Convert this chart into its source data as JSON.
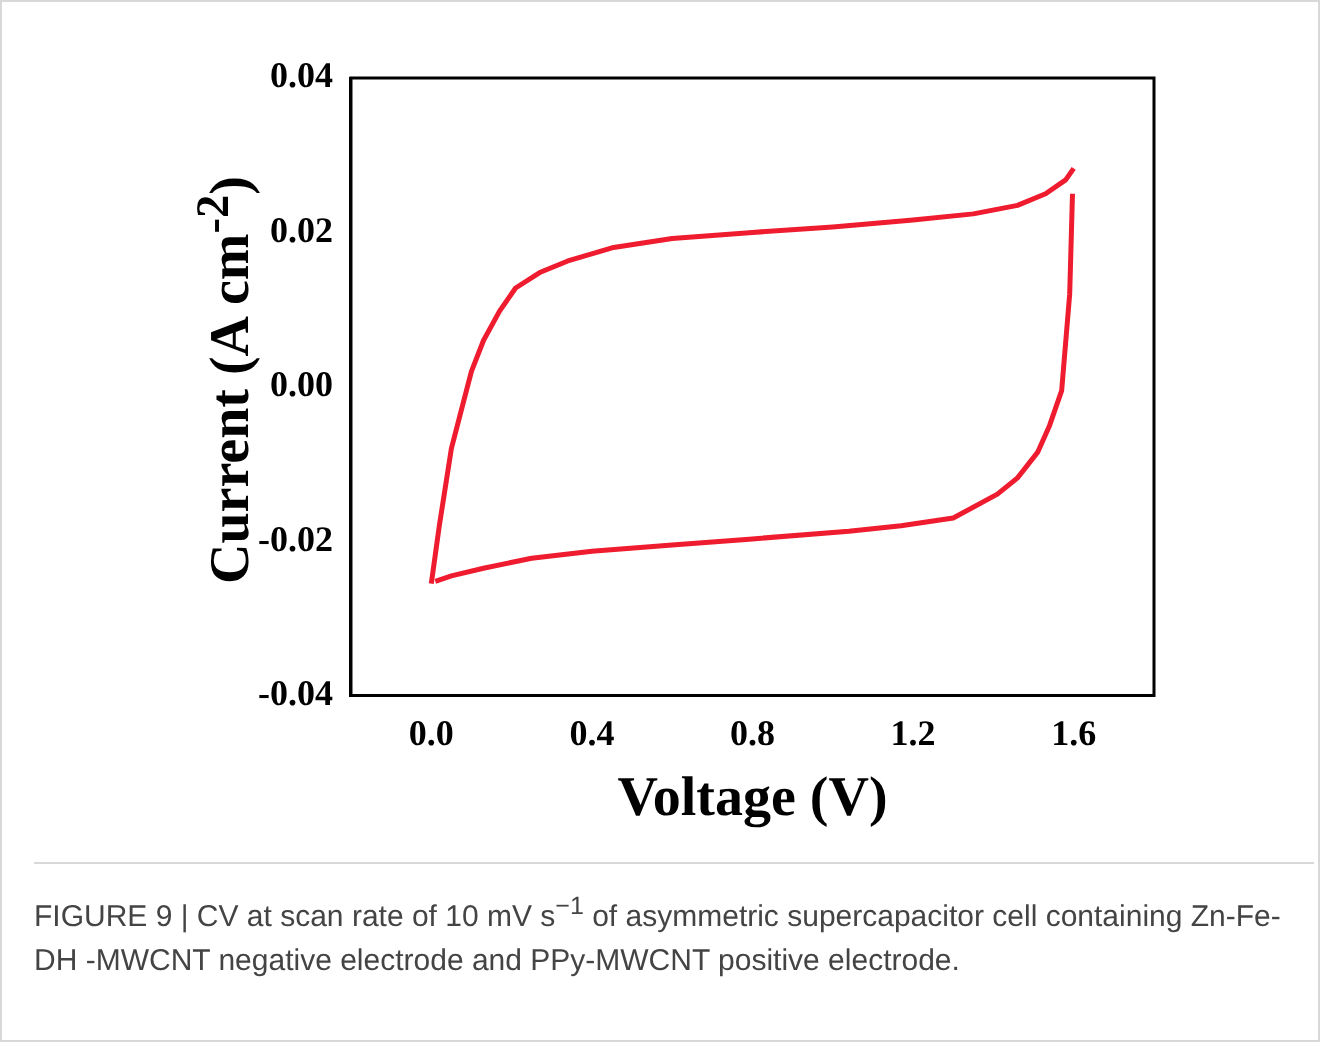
{
  "chart_data": {
    "type": "line",
    "xlabel": "Voltage (V)",
    "ylabel": "Current (A cm$^{-2}$)",
    "xlim": [
      -0.2,
      1.8
    ],
    "xticks": [
      {
        "value": 0,
        "label": "0.0"
      },
      0.4,
      0.8,
      1.2,
      1.6
    ],
    "ylim": [
      -0.04,
      0.04
    ],
    "yticks": [
      -0.04,
      -0.02,
      {
        "value": 0,
        "label": "0.00"
      },
      0.02,
      0.04
    ],
    "grid": false,
    "legend": false,
    "marker": "none",
    "line_style": "solid",
    "series": [
      {
        "color": "#ee1c2e",
        "x": [
          0,
          0.02,
          0.05,
          0.075,
          0.1,
          0.13,
          0.17,
          0.21,
          0.27,
          0.34,
          0.45,
          0.6,
          0.8,
          1.0,
          1.2,
          1.35,
          1.46,
          1.53,
          1.58,
          1.6
        ],
        "values": [
          -0.0255,
          -0.018,
          -0.008,
          -0.003,
          0.002,
          0.006,
          0.0098,
          0.0128,
          0.0148,
          0.0163,
          0.018,
          0.0192,
          0.02,
          0.0207,
          0.0216,
          0.0224,
          0.0235,
          0.025,
          0.0268,
          0.0283
        ]
      },
      {
        "color": "#ee1c2e",
        "x": [
          0.01,
          0.05,
          0.13,
          0.25,
          0.4,
          0.6,
          0.8,
          1.04,
          1.17,
          1.3,
          1.41,
          1.46,
          1.51,
          1.54,
          1.57,
          1.59,
          1.597
        ],
        "values": [
          -0.0252,
          -0.0245,
          -0.0235,
          -0.0222,
          -0.0213,
          -0.0205,
          -0.0197,
          -0.0187,
          -0.018,
          -0.017,
          -0.0139,
          -0.0118,
          -0.0085,
          -0.005,
          -0.0005,
          0.012,
          0.025
        ]
      }
    ],
    "annotations": [
      "FIGURE 9 | CV at scan rate of 10 mV s$^{−1}$ of asymmetric supercapacitor cell containing Zn-Fe-DH -MWCNT negative electrode and PPy-MWCNT positive electrode."
    ]
  }
}
